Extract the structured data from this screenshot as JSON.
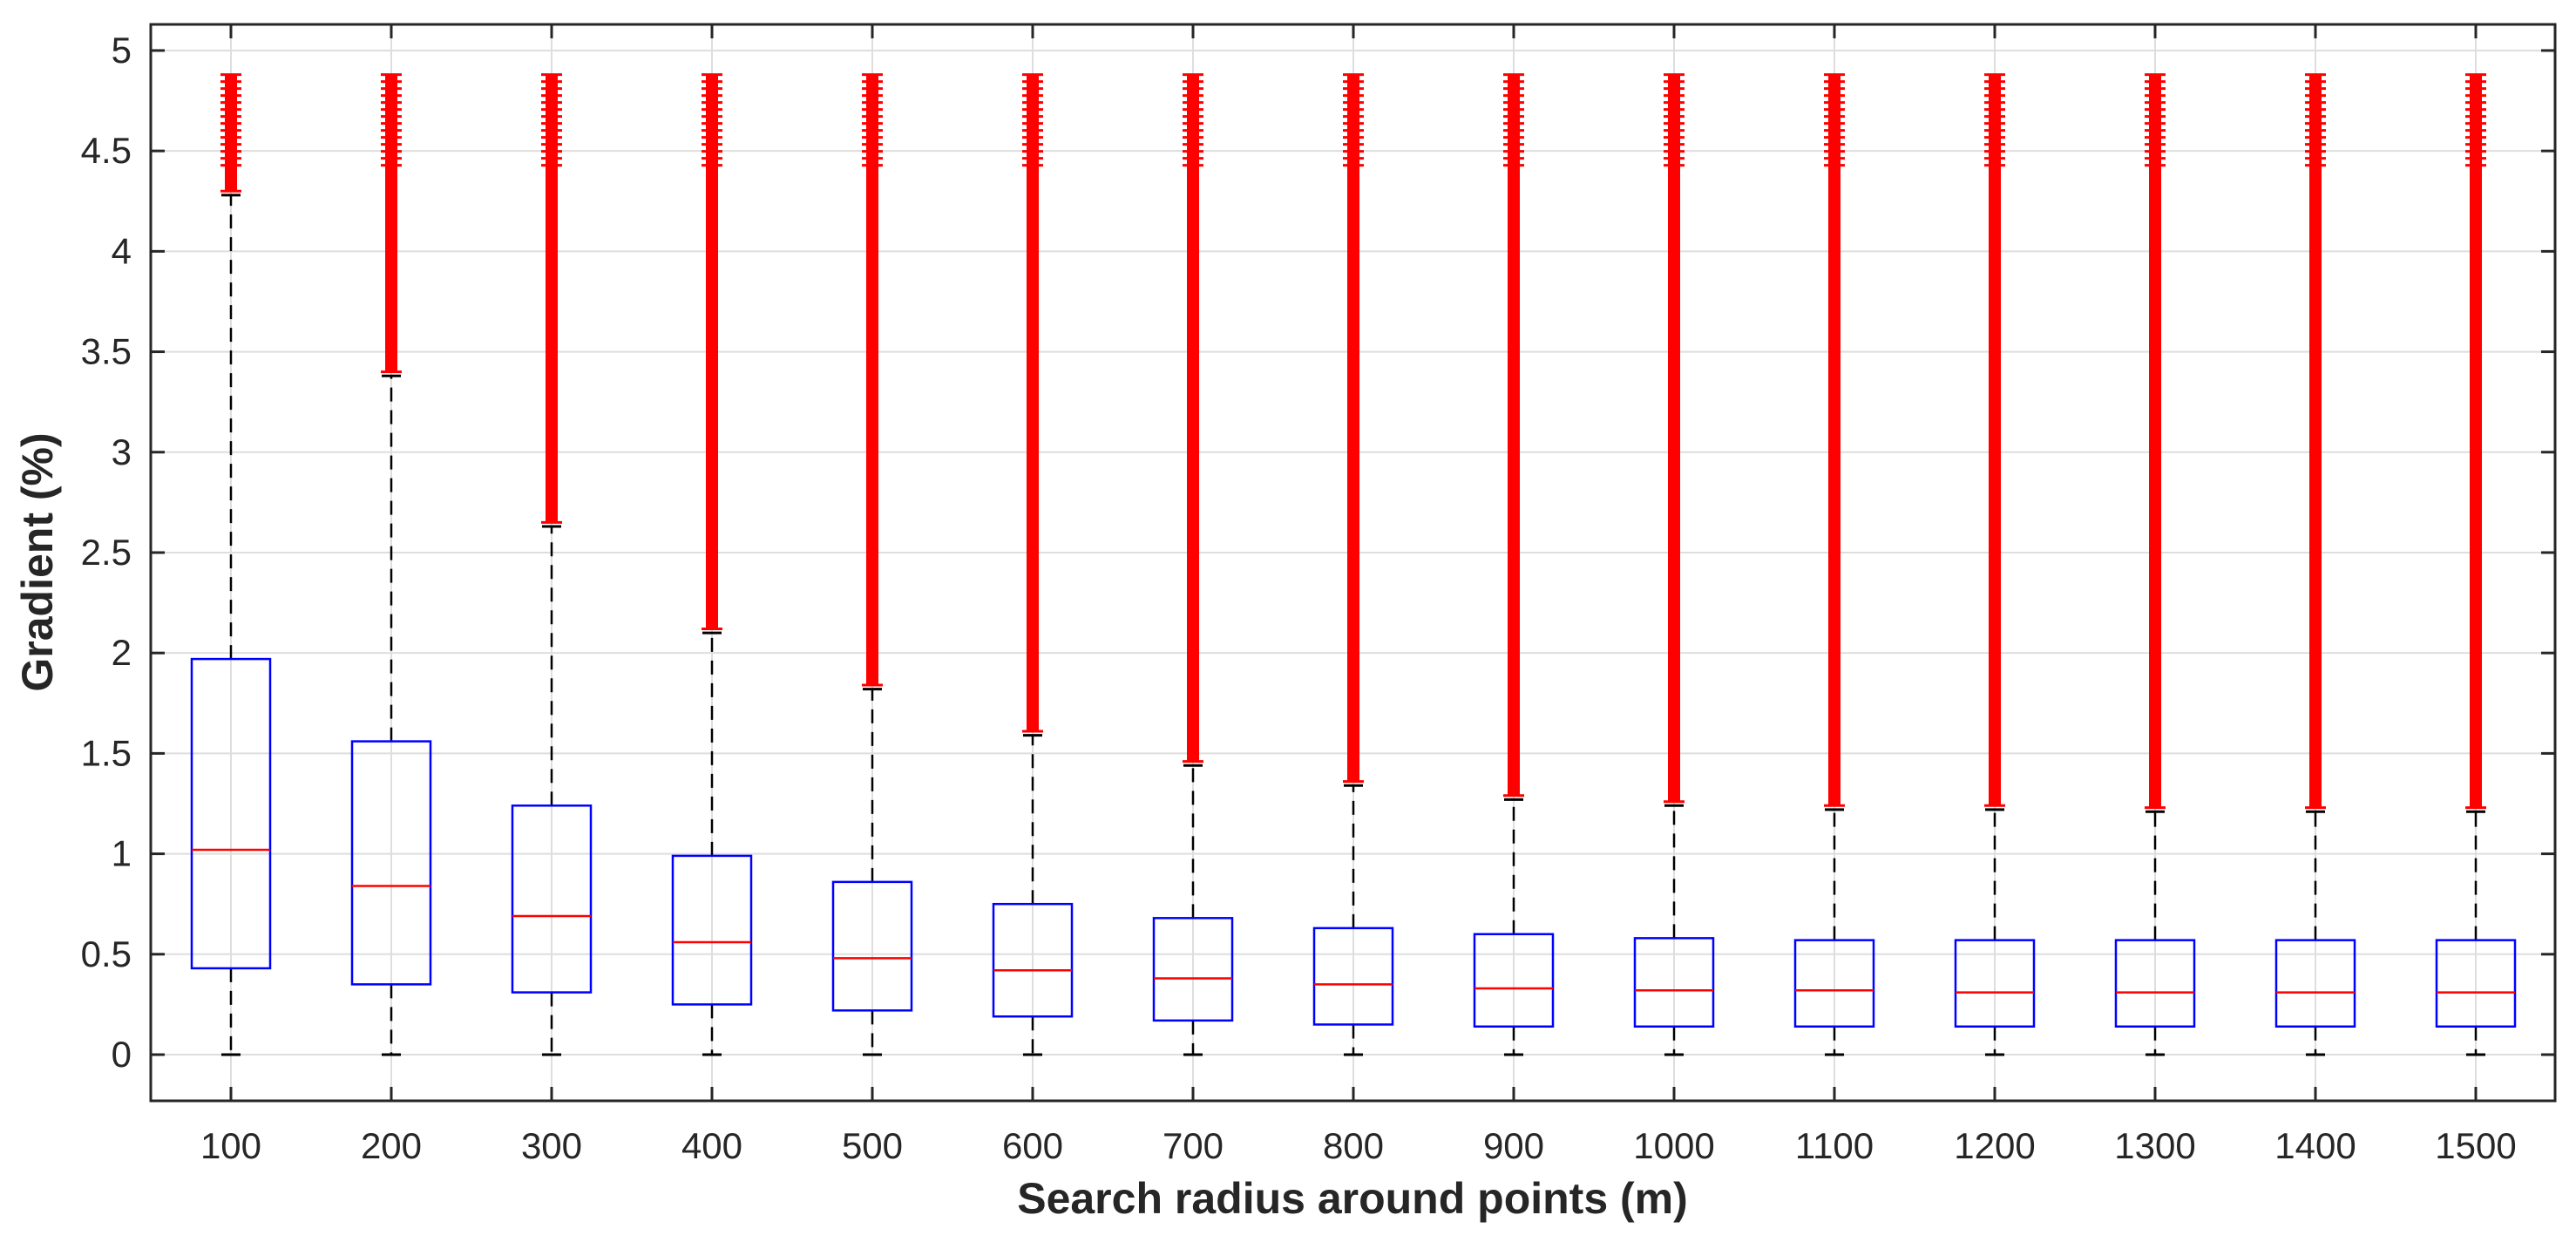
{
  "chart_data": {
    "type": "box",
    "xlabel": "Search radius around points (m)",
    "ylabel": "Gradient (%)",
    "ylim": [
      -0.23,
      5.13
    ],
    "yticks": [
      0,
      0.5,
      1,
      1.5,
      2,
      2.5,
      3,
      3.5,
      4,
      4.5,
      5
    ],
    "ytick_labels": [
      "0",
      "0.5",
      "1",
      "1.5",
      "2",
      "2.5",
      "3",
      "3.5",
      "4",
      "4.5",
      "5"
    ],
    "grid": true,
    "box_color": "#0000ff",
    "median_color": "#ff0000",
    "outlier_color": "#ff0000",
    "outlier_marker": "+",
    "whisker_color": "#000000",
    "categories": [
      "100",
      "200",
      "300",
      "400",
      "500",
      "600",
      "700",
      "800",
      "900",
      "1000",
      "1100",
      "1200",
      "1300",
      "1400",
      "1500"
    ],
    "boxes": [
      {
        "min": 0,
        "q1": 0.43,
        "median": 1.02,
        "q3": 1.97,
        "max": 4.28,
        "outlier_min": 4.3,
        "outlier_max": 4.88
      },
      {
        "min": 0,
        "q1": 0.35,
        "median": 0.84,
        "q3": 1.56,
        "max": 3.38,
        "outlier_min": 3.4,
        "outlier_max": 4.88
      },
      {
        "min": 0,
        "q1": 0.31,
        "median": 0.69,
        "q3": 1.24,
        "max": 2.63,
        "outlier_min": 2.65,
        "outlier_max": 4.88
      },
      {
        "min": 0,
        "q1": 0.25,
        "median": 0.56,
        "q3": 0.99,
        "max": 2.1,
        "outlier_min": 2.12,
        "outlier_max": 4.88
      },
      {
        "min": 0,
        "q1": 0.22,
        "median": 0.48,
        "q3": 0.86,
        "max": 1.82,
        "outlier_min": 1.84,
        "outlier_max": 4.88
      },
      {
        "min": 0,
        "q1": 0.19,
        "median": 0.42,
        "q3": 0.75,
        "max": 1.59,
        "outlier_min": 1.61,
        "outlier_max": 4.88
      },
      {
        "min": 0,
        "q1": 0.17,
        "median": 0.38,
        "q3": 0.68,
        "max": 1.44,
        "outlier_min": 1.46,
        "outlier_max": 4.88
      },
      {
        "min": 0,
        "q1": 0.15,
        "median": 0.35,
        "q3": 0.63,
        "max": 1.34,
        "outlier_min": 1.36,
        "outlier_max": 4.88
      },
      {
        "min": 0,
        "q1": 0.14,
        "median": 0.33,
        "q3": 0.6,
        "max": 1.27,
        "outlier_min": 1.29,
        "outlier_max": 4.88
      },
      {
        "min": 0,
        "q1": 0.14,
        "median": 0.32,
        "q3": 0.58,
        "max": 1.24,
        "outlier_min": 1.26,
        "outlier_max": 4.88
      },
      {
        "min": 0,
        "q1": 0.14,
        "median": 0.32,
        "q3": 0.57,
        "max": 1.22,
        "outlier_min": 1.24,
        "outlier_max": 4.88
      },
      {
        "min": 0,
        "q1": 0.14,
        "median": 0.31,
        "q3": 0.57,
        "max": 1.22,
        "outlier_min": 1.24,
        "outlier_max": 4.88
      },
      {
        "min": 0,
        "q1": 0.14,
        "median": 0.31,
        "q3": 0.57,
        "max": 1.21,
        "outlier_min": 1.23,
        "outlier_max": 4.88
      },
      {
        "min": 0,
        "q1": 0.14,
        "median": 0.31,
        "q3": 0.57,
        "max": 1.21,
        "outlier_min": 1.23,
        "outlier_max": 4.88
      },
      {
        "min": 0,
        "q1": 0.14,
        "median": 0.31,
        "q3": 0.57,
        "max": 1.21,
        "outlier_min": 1.23,
        "outlier_max": 4.88
      }
    ]
  }
}
